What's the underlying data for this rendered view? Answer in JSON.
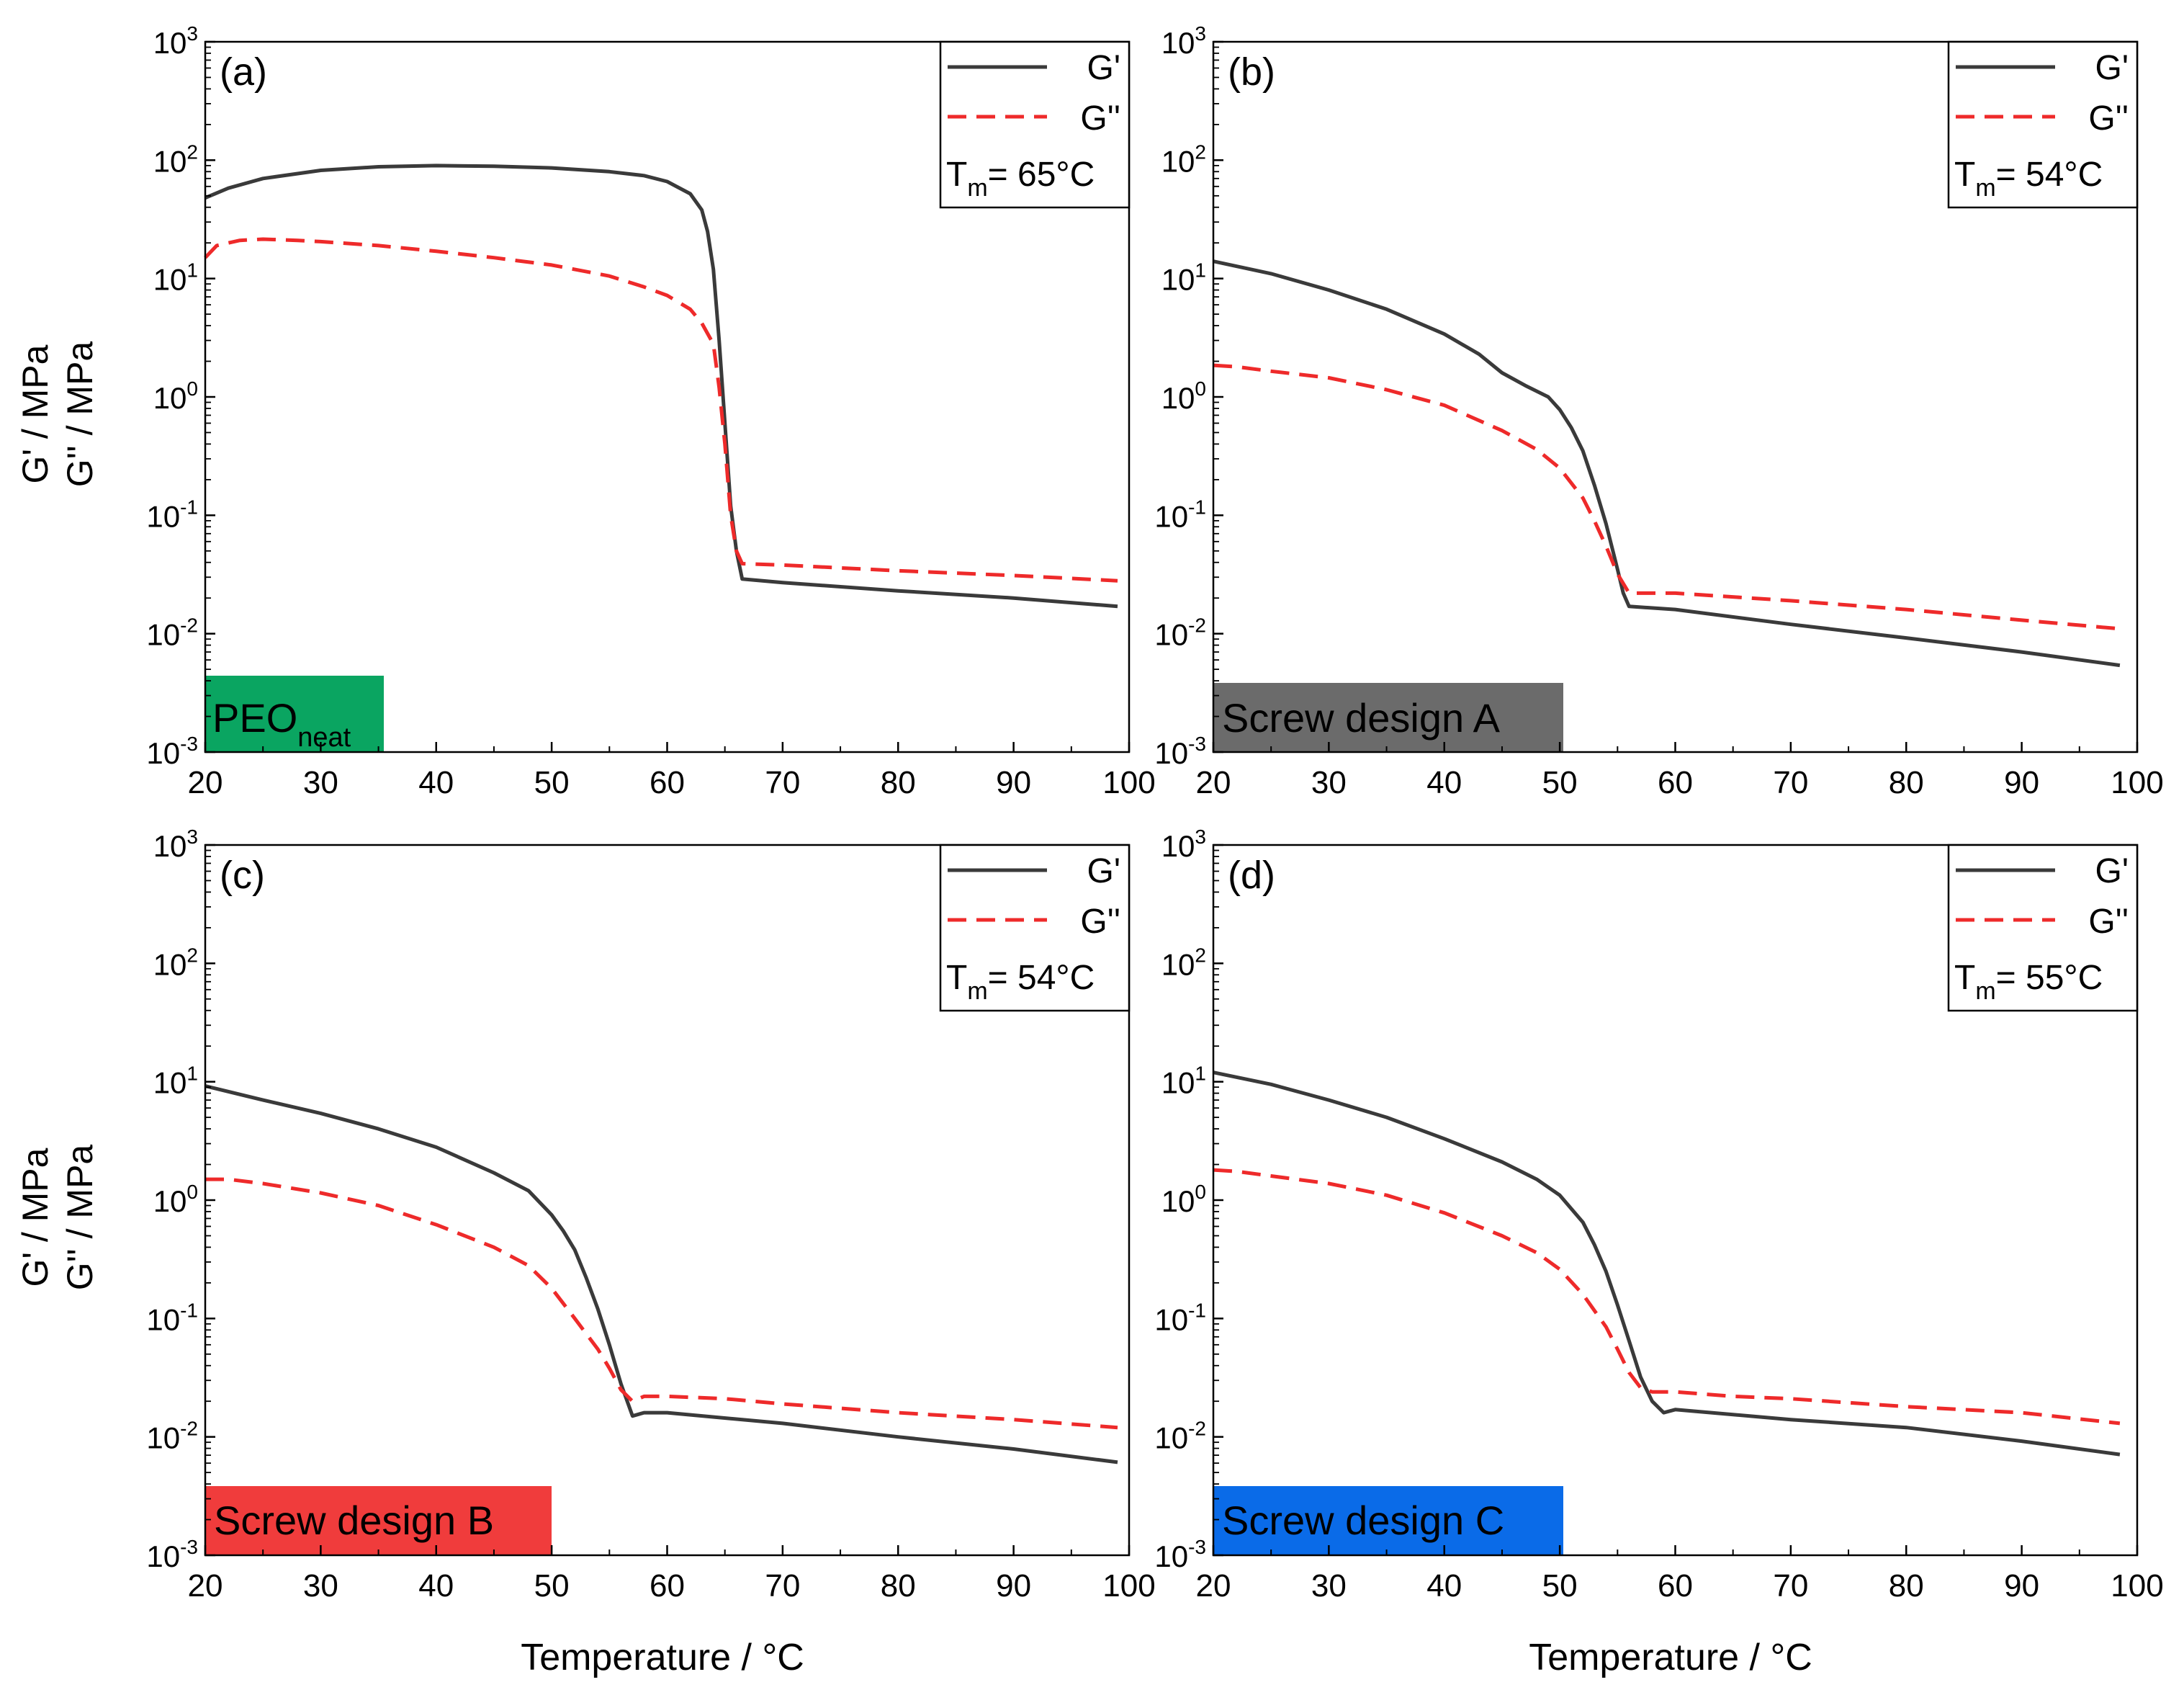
{
  "colors": {
    "g_prime": "#3a3a3a",
    "g_double_prime": "#ee2a2a",
    "axis": "#000000"
  },
  "shared": {
    "xlabel": "Temperature / °C",
    "ylabel_line1": "G' / MPa",
    "ylabel_line2": "G'' / MPa",
    "legend_g1": "G'",
    "legend_g2": "G''",
    "tm_prefix": "T",
    "tm_sub": "m"
  },
  "chart_data": [
    {
      "type": "line",
      "panel_label": "(a)",
      "tag": {
        "main": "PEO",
        "sub": "neat",
        "color": "#0aa561",
        "text_color": "#000000"
      },
      "tm_value": "= 65°C",
      "xlim": [
        20,
        100
      ],
      "ylim_log10": [
        -3,
        3
      ],
      "x_ticks": [
        20,
        30,
        40,
        50,
        60,
        70,
        80,
        90,
        100
      ],
      "x_tick_labels": [
        "20",
        "30",
        "40",
        "50",
        "60",
        "70",
        "80",
        "90",
        "100"
      ],
      "y_ticks_log10": [
        -3,
        -2,
        -1,
        0,
        1,
        2,
        3
      ],
      "y_tick_labels": [
        [
          "10",
          "-3"
        ],
        [
          "10",
          "-2"
        ],
        [
          "10",
          "-1"
        ],
        [
          "10",
          "0"
        ],
        [
          "10",
          "1"
        ],
        [
          "10",
          "2"
        ],
        [
          "10",
          "3"
        ]
      ],
      "series": [
        {
          "name": "G'",
          "style": "solid",
          "x": [
            20,
            22,
            25,
            30,
            35,
            40,
            45,
            50,
            55,
            58,
            60,
            62,
            63,
            63.5,
            64,
            64.5,
            65,
            65.5,
            66,
            66.5,
            70,
            80,
            90,
            99
          ],
          "y": [
            48,
            58,
            70,
            82,
            88,
            90,
            89,
            86,
            80,
            74,
            66,
            52,
            38,
            25,
            12,
            3,
            0.6,
            0.12,
            0.05,
            0.029,
            0.027,
            0.023,
            0.02,
            0.017
          ]
        },
        {
          "name": "G''",
          "style": "dashed",
          "x": [
            20,
            21,
            23,
            25,
            28,
            30,
            35,
            40,
            45,
            50,
            55,
            58,
            60,
            62,
            63,
            64,
            64.5,
            65,
            65.5,
            66,
            66.5,
            70,
            80,
            90,
            99
          ],
          "y": [
            15,
            19,
            21,
            21.5,
            21,
            20.5,
            19,
            17,
            15,
            13,
            10.5,
            8.5,
            7.2,
            5.5,
            4.2,
            2.8,
            1.2,
            0.4,
            0.1,
            0.05,
            0.039,
            0.038,
            0.034,
            0.031,
            0.028
          ]
        }
      ]
    },
    {
      "type": "line",
      "panel_label": "(b)",
      "tag": {
        "main": "Screw design A",
        "sub": "",
        "color": "#6b6b6b",
        "text_color": "#000000"
      },
      "tm_value": "= 54°C",
      "xlim": [
        20,
        100
      ],
      "ylim_log10": [
        -3,
        3
      ],
      "x_ticks": [
        20,
        30,
        40,
        50,
        60,
        70,
        80,
        90,
        100
      ],
      "x_tick_labels": [
        "20",
        "30",
        "40",
        "50",
        "60",
        "70",
        "80",
        "90",
        "100"
      ],
      "y_ticks_log10": [
        -3,
        -2,
        -1,
        0,
        1,
        2,
        3
      ],
      "y_tick_labels": [
        [
          "10",
          "-3"
        ],
        [
          "10",
          "-2"
        ],
        [
          "10",
          "-1"
        ],
        [
          "10",
          "0"
        ],
        [
          "10",
          "1"
        ],
        [
          "10",
          "2"
        ],
        [
          "10",
          "3"
        ]
      ],
      "series": [
        {
          "name": "G'",
          "style": "solid",
          "x": [
            20,
            25,
            30,
            35,
            40,
            43,
            45,
            47,
            49,
            50,
            51,
            52,
            53,
            54,
            55,
            55.5,
            56,
            60,
            70,
            80,
            90,
            98.5
          ],
          "y": [
            14,
            11,
            8,
            5.5,
            3.4,
            2.3,
            1.6,
            1.25,
            1.0,
            0.78,
            0.55,
            0.35,
            0.18,
            0.085,
            0.035,
            0.022,
            0.017,
            0.016,
            0.012,
            0.0092,
            0.007,
            0.0054
          ]
        },
        {
          "name": "G''",
          "style": "dashed",
          "x": [
            20,
            22,
            25,
            30,
            35,
            40,
            45,
            48,
            50,
            52,
            53,
            54,
            55,
            56,
            60,
            70,
            80,
            90,
            98.5
          ],
          "y": [
            1.85,
            1.8,
            1.65,
            1.45,
            1.15,
            0.85,
            0.52,
            0.36,
            0.25,
            0.14,
            0.09,
            0.055,
            0.032,
            0.022,
            0.022,
            0.019,
            0.016,
            0.013,
            0.011
          ]
        }
      ]
    },
    {
      "type": "line",
      "panel_label": "(c)",
      "tag": {
        "main": "Screw design B",
        "sub": "",
        "color": "#f03c3c",
        "text_color": "#000000"
      },
      "tm_value": "= 54°C",
      "xlim": [
        20,
        100
      ],
      "ylim_log10": [
        -3,
        3
      ],
      "x_ticks": [
        20,
        30,
        40,
        50,
        60,
        70,
        80,
        90,
        100
      ],
      "x_tick_labels": [
        "20",
        "30",
        "40",
        "50",
        "60",
        "70",
        "80",
        "90",
        "100"
      ],
      "y_ticks_log10": [
        -3,
        -2,
        -1,
        0,
        1,
        2,
        3
      ],
      "y_tick_labels": [
        [
          "10",
          "-3"
        ],
        [
          "10",
          "-2"
        ],
        [
          "10",
          "-1"
        ],
        [
          "10",
          "0"
        ],
        [
          "10",
          "1"
        ],
        [
          "10",
          "2"
        ],
        [
          "10",
          "3"
        ]
      ],
      "series": [
        {
          "name": "G'",
          "style": "solid",
          "x": [
            20,
            25,
            30,
            35,
            40,
            45,
            48,
            50,
            51,
            52,
            53,
            54,
            55,
            56,
            57,
            58,
            60,
            70,
            80,
            90,
            99
          ],
          "y": [
            9.2,
            7,
            5.4,
            4.0,
            2.8,
            1.7,
            1.2,
            0.75,
            0.55,
            0.38,
            0.22,
            0.12,
            0.06,
            0.028,
            0.015,
            0.016,
            0.016,
            0.013,
            0.01,
            0.0079,
            0.0061
          ]
        },
        {
          "name": "G''",
          "style": "dashed",
          "x": [
            20,
            22,
            25,
            30,
            35,
            40,
            45,
            48,
            50,
            52,
            54,
            55,
            56,
            57,
            58,
            60,
            65,
            70,
            80,
            90,
            99
          ],
          "y": [
            1.5,
            1.5,
            1.38,
            1.15,
            0.9,
            0.62,
            0.4,
            0.28,
            0.18,
            0.1,
            0.055,
            0.038,
            0.025,
            0.02,
            0.022,
            0.022,
            0.021,
            0.019,
            0.016,
            0.014,
            0.012
          ]
        }
      ]
    },
    {
      "type": "line",
      "panel_label": "(d)",
      "tag": {
        "main": "Screw design C",
        "sub": "",
        "color": "#0a6be8",
        "text_color": "#000000"
      },
      "tm_value": "= 55°C",
      "xlim": [
        20,
        100
      ],
      "ylim_log10": [
        -3,
        3
      ],
      "x_ticks": [
        20,
        30,
        40,
        50,
        60,
        70,
        80,
        90,
        100
      ],
      "x_tick_labels": [
        "20",
        "30",
        "40",
        "50",
        "60",
        "70",
        "80",
        "90",
        "100"
      ],
      "y_ticks_log10": [
        -3,
        -2,
        -1,
        0,
        1,
        2,
        3
      ],
      "y_tick_labels": [
        [
          "10",
          "-3"
        ],
        [
          "10",
          "-2"
        ],
        [
          "10",
          "-1"
        ],
        [
          "10",
          "0"
        ],
        [
          "10",
          "1"
        ],
        [
          "10",
          "2"
        ],
        [
          "10",
          "3"
        ]
      ],
      "series": [
        {
          "name": "G'",
          "style": "solid",
          "x": [
            20,
            25,
            30,
            35,
            40,
            45,
            48,
            50,
            52,
            53,
            54,
            55,
            56,
            57,
            58,
            59,
            60,
            70,
            80,
            90,
            98.5
          ],
          "y": [
            12,
            9.5,
            7,
            5,
            3.3,
            2.1,
            1.5,
            1.1,
            0.65,
            0.42,
            0.25,
            0.13,
            0.065,
            0.032,
            0.02,
            0.016,
            0.017,
            0.014,
            0.012,
            0.0092,
            0.0071
          ]
        },
        {
          "name": "G''",
          "style": "dashed",
          "x": [
            20,
            22,
            25,
            30,
            35,
            40,
            45,
            48,
            50,
            52,
            54,
            55,
            56,
            57,
            58,
            60,
            65,
            70,
            80,
            90,
            98.5
          ],
          "y": [
            1.8,
            1.75,
            1.6,
            1.38,
            1.1,
            0.78,
            0.5,
            0.36,
            0.26,
            0.16,
            0.085,
            0.055,
            0.035,
            0.026,
            0.024,
            0.024,
            0.022,
            0.021,
            0.018,
            0.016,
            0.013
          ]
        }
      ]
    }
  ]
}
